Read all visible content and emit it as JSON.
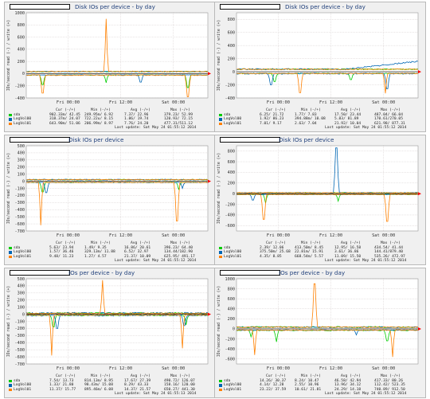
{
  "colors": {
    "sda": "#00cc00",
    "LogVol00": "#0066b3",
    "LogVol01": "#ff8000",
    "grid": "#d0c8c8",
    "frame": "#9a9a9a",
    "accent_red": "#ff0000"
  },
  "legend_headers": {
    "cur": "Cur (-/+)",
    "min": "Min (-/+)",
    "avg": "Avg (-/+)",
    "max": "Max (-/+)"
  },
  "panels": [
    {
      "title": "Disk IOs per device - by day",
      "ylabel": "IOs/second read (-) / write (+)",
      "chart_data": {
        "type": "line",
        "ylim": [
          -400,
          1000
        ],
        "yticks": [
          1000,
          800,
          600,
          400,
          200,
          0,
          -200,
          -400
        ],
        "xticks": [
          {
            "label": "Fri 00:00",
            "pos": 0.23
          },
          {
            "label": "Fri 12:00",
            "pos": 0.52
          },
          {
            "label": "Sat 00:00",
            "pos": 0.81
          }
        ],
        "baseline": 30,
        "series": [
          {
            "name": "sda",
            "noise": 14,
            "spikes": [
              {
                "t": 0.09,
                "v": -180
              },
              {
                "t": 0.44,
                "v": -150
              },
              {
                "t": 0.89,
                "v": -230
              }
            ]
          },
          {
            "name": "LogVol00",
            "noise": 10,
            "spikes": [
              {
                "t": 0.63,
                "v": -140
              }
            ]
          },
          {
            "name": "LogVol01",
            "noise": 18,
            "spikes": [
              {
                "t": 0.09,
                "v": -320
              },
              {
                "t": 0.44,
                "v": 900
              },
              {
                "t": 0.89,
                "v": -380
              }
            ]
          }
        ]
      },
      "legend": [
        {
          "name": "sda",
          "cur": "902.33m/ 42.45",
          "min": "249.95m/ 6.92",
          "avg": "7.37/ 22.96",
          "max": "379.23/ 52.99"
        },
        {
          "name": "LogVol00",
          "cur": "318.37m/ 24.07",
          "min": "722.22u/ 8.15",
          "avg": "1.86/ 19.74",
          "max": "120.93/ 72.15"
        },
        {
          "name": "LogVol01",
          "cur": "643.90m/ 51.06",
          "min": "206.99m/ 8.97",
          "avg": "7.76/ 24.20",
          "max": "477.31/511.12"
        }
      ],
      "last_update": "Last update: Sat May 24 01:55:12 2014"
    },
    {
      "title": "Disk IOs per device - by day",
      "ylabel": "IOs/second read (-) / write (+)",
      "chart_data": {
        "type": "line",
        "ylim": [
          -400,
          900
        ],
        "yticks": [
          800,
          600,
          400,
          200,
          0,
          -200,
          -400
        ],
        "xticks": [
          {
            "label": "Fri 00:00",
            "pos": 0.23
          },
          {
            "label": "Fri 12:00",
            "pos": 0.52
          },
          {
            "label": "Sat 00:00",
            "pos": 0.81
          }
        ],
        "baseline": 35,
        "series": [
          {
            "name": "sda",
            "noise": 16,
            "spikes": [
              {
                "t": 0.21,
                "v": -150
              },
              {
                "t": 0.63,
                "v": -120
              }
            ]
          },
          {
            "name": "LogVol00",
            "noise": 20,
            "rise": 120,
            "spikes": [
              {
                "t": 0.19,
                "v": -200
              },
              {
                "t": 0.83,
                "v": -260
              }
            ]
          },
          {
            "name": "LogVol01",
            "noise": 14,
            "spikes": [
              {
                "t": 0.35,
                "v": -320
              },
              {
                "t": 0.82,
                "v": -330
              }
            ]
          }
        ]
      },
      "legend": [
        {
          "name": "sda",
          "cur": "6.25/ 21.72",
          "min": "1.77/ 7.83",
          "avg": "17.50/ 23.44",
          "max": "487.04/ 66.04"
        },
        {
          "name": "LogVol00",
          "cur": "1.92/ 86.23",
          "min": "394.88m/ 10.08",
          "avg": "5.83/ 81.89",
          "max": "170.61/270.05"
        },
        {
          "name": "LogVol01",
          "cur": "7.01/ 9.17",
          "min": "2.63/ 7.04",
          "avg": "21.92/ 10.04",
          "max": "621.98/ 877.31"
        }
      ],
      "last_update": "Last update: Sat May 24 01:55:12 2014"
    },
    {
      "title": "Disk IOs per device",
      "ylabel": "IOs/second read (-) / write (+)",
      "chart_data": {
        "type": "line",
        "ylim": [
          -700,
          500
        ],
        "yticks": [
          500,
          400,
          300,
          200,
          100,
          0,
          -100,
          -200,
          -300,
          -400,
          -500,
          -600,
          -700
        ],
        "xticks": [
          {
            "label": "Fri 00:00",
            "pos": 0.23
          },
          {
            "label": "Fri 12:00",
            "pos": 0.52
          },
          {
            "label": "Sat 00:00",
            "pos": 0.81
          }
        ],
        "baseline": 20,
        "series": [
          {
            "name": "sda",
            "noise": 12,
            "spikes": [
              {
                "t": 0.09,
                "v": -150
              },
              {
                "t": 0.84,
                "v": -120
              }
            ]
          },
          {
            "name": "LogVol00",
            "noise": 14,
            "spikes": [
              {
                "t": 0.11,
                "v": -160
              },
              {
                "t": 0.86,
                "v": -100
              }
            ]
          },
          {
            "name": "LogVol01",
            "noise": 10,
            "spikes": [
              {
                "t": 0.08,
                "v": -620
              },
              {
                "t": 0.83,
                "v": -560
              }
            ]
          }
        ]
      },
      "legend": [
        {
          "name": "sda",
          "cur": "5.63/ 23.94",
          "min": "1.49/ 9.35",
          "avg": "16.86/ 20.61",
          "max": "396.23/ 64.40"
        },
        {
          "name": "LogVol00",
          "cur": "1.57/ 36.46",
          "min": "329.13m/ 11.88",
          "avg": "6.52/ 32.97",
          "max": "134.44/182.90"
        },
        {
          "name": "LogVol01",
          "cur": "9.48/ 11.23",
          "min": "1.27/ 4.57",
          "avg": "21.37/ 10.09",
          "max": "625.95/ 491.17"
        }
      ],
      "last_update": "Last update: Sat May 24 01:55:12 2014"
    },
    {
      "title": "Disk IOs per device",
      "ylabel": "IOs/second read (-) / write (+)",
      "chart_data": {
        "type": "line",
        "ylim": [
          -700,
          900
        ],
        "yticks": [
          800,
          600,
          400,
          200,
          0,
          -200,
          -400,
          -600
        ],
        "xticks": [
          {
            "label": "Fri 00:00",
            "pos": 0.23
          },
          {
            "label": "Fri 12:00",
            "pos": 0.52
          },
          {
            "label": "Sat 00:00",
            "pos": 0.81
          }
        ],
        "baseline": 15,
        "series": [
          {
            "name": "sda",
            "noise": 14,
            "spikes": [
              {
                "t": 0.16,
                "v": -180
              },
              {
                "t": 0.56,
                "v": -140
              }
            ]
          },
          {
            "name": "LogVol00",
            "noise": 12,
            "spikes": [
              {
                "t": 0.55,
                "v": 860
              },
              {
                "t": 0.09,
                "v": -120
              }
            ]
          },
          {
            "name": "LogVol01",
            "noise": 12,
            "spikes": [
              {
                "t": 0.15,
                "v": -480
              },
              {
                "t": 0.83,
                "v": -520
              }
            ]
          }
        ]
      },
      "legend": [
        {
          "name": "sda",
          "cur": "2.39/ 12.06",
          "min": "413.50m/ 8.45",
          "avg": "12.95/ 16.58",
          "max": "434.54/ 41.44"
        },
        {
          "name": "LogVol00",
          "cur": "375.50m/ 25.68",
          "min": "22.81m/ 15.91",
          "avg": "3.61/ 36.86",
          "max": "144.41/879.40"
        },
        {
          "name": "LogVol01",
          "cur": "4.35/ 8.85",
          "min": "668.54m/ 5.57",
          "avg": "11.09/ 15.50",
          "max": "535.26/ 472.97"
        }
      ],
      "last_update": "Last update: Sat May 24 01:55:12 2014"
    },
    {
      "title": "IOs per device - by day",
      "ylabel": "IOs/second read (-) / write (+)",
      "chart_data": {
        "type": "line",
        "ylim": [
          -700,
          500
        ],
        "yticks": [
          500,
          400,
          300,
          200,
          100,
          0,
          -100,
          -200,
          -300,
          -400,
          -500,
          -600,
          -700
        ],
        "xticks": [
          {
            "label": "Fri 00:00",
            "pos": 0.23
          },
          {
            "label": "Fri 12:00",
            "pos": 0.52
          },
          {
            "label": "Sat 00:00",
            "pos": 0.81
          }
        ],
        "baseline": 10,
        "series": [
          {
            "name": "sda",
            "noise": 22,
            "spikes": [
              {
                "t": 0.15,
                "v": -180
              },
              {
                "t": 0.88,
                "v": -150
              }
            ]
          },
          {
            "name": "LogVol00",
            "noise": 25,
            "spikes": [
              {
                "t": 0.17,
                "v": -200
              },
              {
                "t": 0.87,
                "v": -160
              }
            ]
          },
          {
            "name": "LogVol01",
            "noise": 14,
            "spikes": [
              {
                "t": 0.14,
                "v": -580
              },
              {
                "t": 0.42,
                "v": 480
              },
              {
                "t": 0.86,
                "v": -480
              }
            ]
          }
        ]
      },
      "legend": [
        {
          "name": "sda",
          "cur": "7.54/ 13.73",
          "min": "814.13m/ 8.95",
          "avg": "17.67/ 27.39",
          "max": "490.72/ 126.07"
        },
        {
          "name": "LogVol00",
          "cur": "1.33/ 21.80",
          "min": "98.43m/ 15.08",
          "avg": "8.29/ 43.33",
          "max": "158.16/ 120.00"
        },
        {
          "name": "LogVol01",
          "cur": "11.37/ 15.77",
          "min": "895.46m/ 6.08",
          "avg": "14.37/ 21.57",
          "max": "650.27/ 441.30"
        }
      ],
      "last_update": "Last update: Sat May 24 01:55:13 2014"
    },
    {
      "title": "IOs per device - by day",
      "ylabel": "IOs/second read (-) / write (+)",
      "chart_data": {
        "type": "line",
        "ylim": [
          -700,
          1000
        ],
        "yticks": [
          1000,
          800,
          600,
          400,
          200,
          0,
          -200,
          -400,
          -600
        ],
        "xticks": [
          {
            "label": "Fri 00:00",
            "pos": 0.23
          },
          {
            "label": "Fri 12:00",
            "pos": 0.52
          },
          {
            "label": "Sat 00:00",
            "pos": 0.81
          }
        ],
        "baseline": 30,
        "series": [
          {
            "name": "sda",
            "noise": 26,
            "spikes": [
              {
                "t": 0.08,
                "v": -160
              },
              {
                "t": 0.22,
                "v": -260
              },
              {
                "t": 0.83,
                "v": -240
              }
            ]
          },
          {
            "name": "LogVol00",
            "noise": 18,
            "spikes": [
              {
                "t": 0.66,
                "v": -120
              }
            ]
          },
          {
            "name": "LogVol01",
            "noise": 20,
            "spikes": [
              {
                "t": 0.1,
                "v": -520
              },
              {
                "t": 0.43,
                "v": 900
              },
              {
                "t": 0.86,
                "v": -560
              }
            ]
          }
        ]
      },
      "legend": [
        {
          "name": "sda",
          "cur": "14.26/ 30.37",
          "min": "8.24/ 10.47",
          "avg": "46.58/ 42.94",
          "max": "417.33/ 80.26"
        },
        {
          "name": "LogVol00",
          "cur": "4.14/ 12.28",
          "min": "2.55/ 10.96",
          "avg": "13.96/ 34.12",
          "max": "112.42/ 523.35"
        },
        {
          "name": "LogVol01",
          "cur": "23.22/ 37.59",
          "min": "10.61/ 21.81",
          "avg": "24.29/ 14.18",
          "max": "740.89/ 912.50"
        }
      ],
      "last_update": "Last update: Sat May 24 01:55:12 2014"
    }
  ]
}
